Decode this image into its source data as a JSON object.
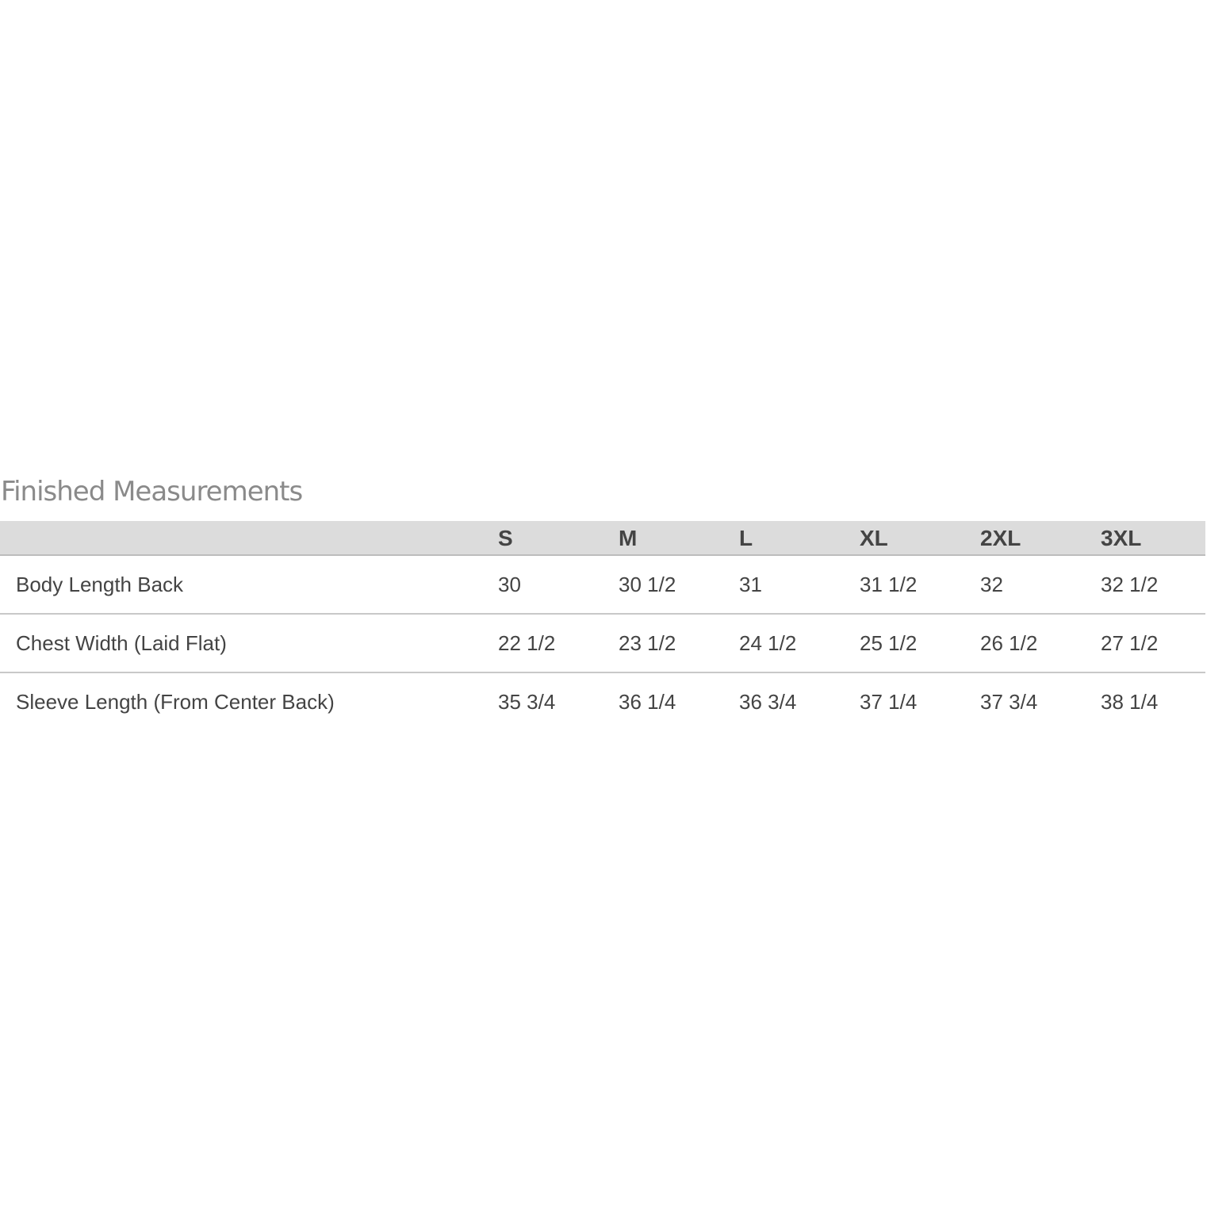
{
  "title": "Finished Measurements",
  "table": {
    "columns": [
      "S",
      "M",
      "L",
      "XL",
      "2XL",
      "3XL"
    ],
    "rows": [
      {
        "label": "Body Length Back",
        "values": [
          "30",
          "30 1/2",
          "31",
          "31 1/2",
          "32",
          "32 1/2"
        ]
      },
      {
        "label": "Chest Width (Laid Flat)",
        "values": [
          "22 1/2",
          "23 1/2",
          "24 1/2",
          "25 1/2",
          "26 1/2",
          "27 1/2"
        ]
      },
      {
        "label": "Sleeve Length (From Center Back)",
        "values": [
          "35 3/4",
          "36 1/4",
          "36 3/4",
          "37 1/4",
          "37 3/4",
          "38 1/4"
        ]
      }
    ]
  }
}
